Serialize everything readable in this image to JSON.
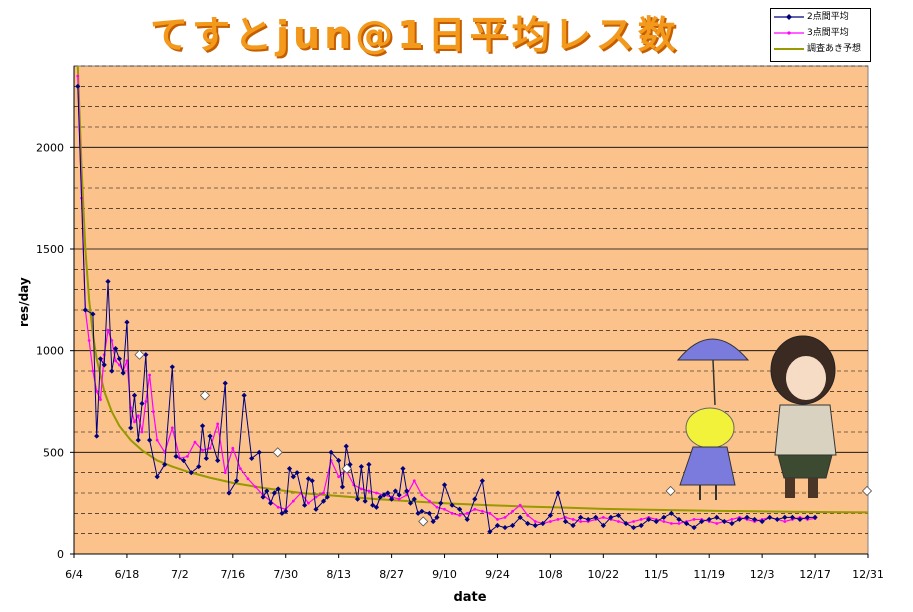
{
  "chart_data": {
    "type": "line",
    "title": "てすとjun@1日平均レス数",
    "xlabel": "date",
    "ylabel": "res/day",
    "ylim": [
      0,
      2400
    ],
    "y_ticks": [
      0,
      500,
      1000,
      1500,
      2000
    ],
    "x_tick_labels": [
      "6/4",
      "6/18",
      "7/2",
      "7/16",
      "7/30",
      "8/13",
      "8/27",
      "9/10",
      "9/24",
      "10/8",
      "10/22",
      "11/5",
      "11/19",
      "12/3",
      "12/17",
      "12/31"
    ],
    "grid": "horizontal-dashed",
    "legend_position": "top-right",
    "colors": {
      "plot_bg": "#fcc28c",
      "series1": "#000080",
      "series2": "#ff00ff",
      "trend": "#999900",
      "title": "#f39a1c"
    },
    "series": [
      {
        "name": "2点間平均",
        "x": [
          1,
          3,
          5,
          6,
          7,
          8,
          9,
          10,
          11,
          12,
          13,
          14,
          15,
          16,
          17,
          18,
          19,
          20,
          22,
          24,
          26,
          27,
          29,
          31,
          33,
          34,
          35,
          36,
          38,
          40,
          41,
          43,
          45,
          47,
          49,
          50,
          51,
          52,
          53,
          54,
          55,
          56,
          57,
          58,
          59,
          61,
          62,
          63,
          64,
          66,
          67,
          68,
          70,
          71,
          72,
          73,
          75,
          76,
          77,
          78,
          79,
          80,
          81,
          82,
          83,
          84,
          85,
          86,
          87,
          88,
          89,
          90,
          91,
          92,
          94,
          95,
          96,
          97,
          98,
          100,
          102,
          104,
          106,
          108,
          110,
          112,
          114,
          116,
          118,
          120,
          122,
          124,
          126,
          128,
          130,
          132,
          134,
          136,
          138,
          140,
          142,
          144,
          146,
          148,
          150,
          152,
          154,
          156,
          158,
          160,
          162,
          164,
          166,
          168,
          170,
          172,
          174,
          176,
          178,
          180,
          182,
          184,
          186,
          188,
          190,
          192,
          194,
          196
        ],
        "values": [
          2300,
          1200,
          1180,
          580,
          960,
          930,
          1340,
          900,
          1010,
          960,
          890,
          1140,
          620,
          780,
          560,
          740,
          980,
          560,
          380,
          440,
          920,
          480,
          460,
          400,
          430,
          630,
          470,
          580,
          460,
          840,
          300,
          360,
          780,
          470,
          500,
          280,
          310,
          250,
          300,
          320,
          200,
          210,
          420,
          380,
          400,
          240,
          370,
          360,
          220,
          260,
          280,
          500,
          460,
          330,
          530,
          440,
          270,
          430,
          260,
          440,
          240,
          230,
          280,
          290,
          300,
          270,
          310,
          290,
          420,
          310,
          250,
          270,
          200,
          210,
          200,
          160,
          180,
          250,
          340,
          240,
          220,
          170,
          270,
          360,
          110,
          140,
          130,
          140,
          180,
          150,
          140,
          150,
          190,
          300,
          160,
          140,
          180,
          170,
          180,
          140,
          180,
          190,
          150,
          130,
          140,
          170,
          160,
          180,
          200,
          170,
          150,
          130,
          160,
          170,
          180,
          160,
          150,
          170,
          180,
          170,
          160,
          180,
          170,
          180,
          180,
          170,
          180,
          180
        ],
        "marker": "diamond"
      },
      {
        "name": "3点間平均",
        "x": [
          1,
          2,
          3,
          4,
          5,
          6,
          7,
          8,
          9,
          10,
          11,
          12,
          13,
          14,
          15,
          16,
          17,
          18,
          19,
          20,
          21,
          22,
          24,
          26,
          28,
          30,
          32,
          34,
          36,
          38,
          40,
          42,
          44,
          46,
          48,
          50,
          52,
          54,
          56,
          58,
          60,
          62,
          64,
          66,
          68,
          70,
          72,
          74,
          76,
          78,
          80,
          82,
          84,
          86,
          88,
          90,
          92,
          94,
          96,
          98,
          100,
          102,
          104,
          106,
          108,
          110,
          112,
          114,
          116,
          118,
          120,
          122,
          124,
          126,
          128,
          130,
          132,
          134,
          136,
          138,
          140,
          142,
          144,
          146,
          148,
          150,
          152,
          154,
          156,
          158,
          160,
          162,
          164,
          166,
          168,
          170,
          172,
          174,
          176,
          178,
          180,
          182,
          184,
          186,
          188,
          190,
          192,
          194,
          196
        ],
        "values": [
          2350,
          1750,
          1200,
          1050,
          900,
          800,
          760,
          980,
          1100,
          1050,
          950,
          930,
          900,
          950,
          720,
          650,
          680,
          600,
          750,
          880,
          700,
          560,
          500,
          620,
          470,
          480,
          550,
          510,
          520,
          640,
          400,
          520,
          420,
          370,
          330,
          290,
          260,
          230,
          220,
          260,
          300,
          250,
          280,
          300,
          460,
          380,
          410,
          340,
          320,
          310,
          300,
          290,
          280,
          270,
          290,
          360,
          290,
          260,
          230,
          220,
          200,
          190,
          200,
          220,
          210,
          200,
          170,
          180,
          210,
          240,
          190,
          160,
          150,
          160,
          170,
          180,
          170,
          160,
          160,
          170,
          180,
          170,
          160,
          150,
          160,
          170,
          180,
          170,
          160,
          150,
          150,
          160,
          170,
          170,
          160,
          150,
          160,
          170,
          180,
          170,
          160,
          170,
          180,
          170,
          160,
          170,
          180,
          170,
          175
        ],
        "marker": "small-dot"
      },
      {
        "name": "調査あき予想",
        "type": "trend-curve",
        "x": [
          1,
          2,
          3,
          4,
          5,
          6,
          8,
          10,
          12,
          15,
          18,
          22,
          26,
          30,
          36,
          42,
          50,
          60,
          70,
          80,
          90,
          100,
          110,
          120,
          130,
          140,
          150,
          160,
          170,
          180,
          190,
          200,
          210
        ],
        "values": [
          2400,
          1900,
          1500,
          1250,
          1080,
          960,
          800,
          700,
          630,
          560,
          510,
          460,
          430,
          405,
          375,
          350,
          325,
          300,
          285,
          270,
          258,
          248,
          240,
          233,
          228,
          222,
          218,
          215,
          212,
          210,
          208,
          206,
          205
        ]
      }
    ],
    "highlight_markers": {
      "x": [
        18,
        36,
        56,
        75,
        96,
        164,
        218
      ],
      "values": [
        980,
        780,
        500,
        420,
        160,
        310,
        310
      ]
    }
  }
}
